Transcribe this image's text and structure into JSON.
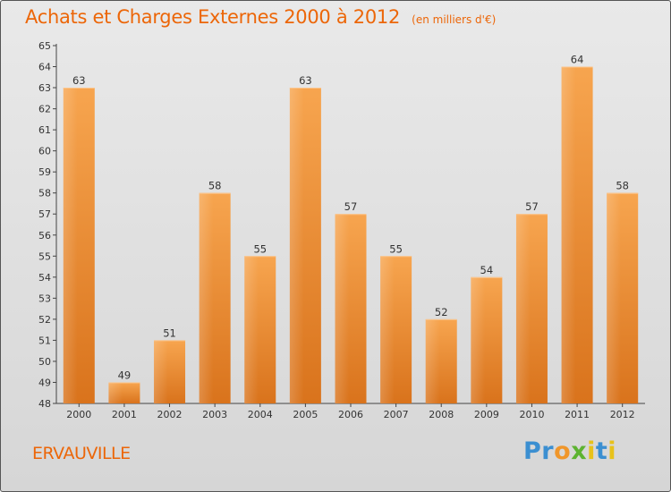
{
  "title": "Achats et Charges Externes 2000 à 2012",
  "subtitle": "(en milliers d'€)",
  "location": "ERVAUVILLE",
  "logo": {
    "letters": [
      "P",
      "r",
      "o",
      "x",
      "i",
      "t",
      "i"
    ],
    "colors": [
      "#3b8fd1",
      "#3b8fd1",
      "#f0962a",
      "#5db331",
      "#e8c21b",
      "#3b8fd1",
      "#e8c21b"
    ]
  },
  "colors": {
    "bar_top": "#f7a54f",
    "bar_bottom": "#d9731c",
    "accent": "#ec6608"
  },
  "chart_data": {
    "type": "bar",
    "categories": [
      "2000",
      "2001",
      "2002",
      "2003",
      "2004",
      "2005",
      "2006",
      "2007",
      "2008",
      "2009",
      "2010",
      "2011",
      "2012"
    ],
    "values": [
      63,
      49,
      51,
      58,
      55,
      63,
      57,
      55,
      52,
      54,
      57,
      64,
      58
    ],
    "ylim": [
      48,
      65
    ],
    "yticks": [
      48,
      49,
      50,
      51,
      52,
      53,
      54,
      55,
      56,
      57,
      58,
      59,
      60,
      61,
      62,
      63,
      64,
      65
    ],
    "grid": false,
    "legend": "none"
  }
}
